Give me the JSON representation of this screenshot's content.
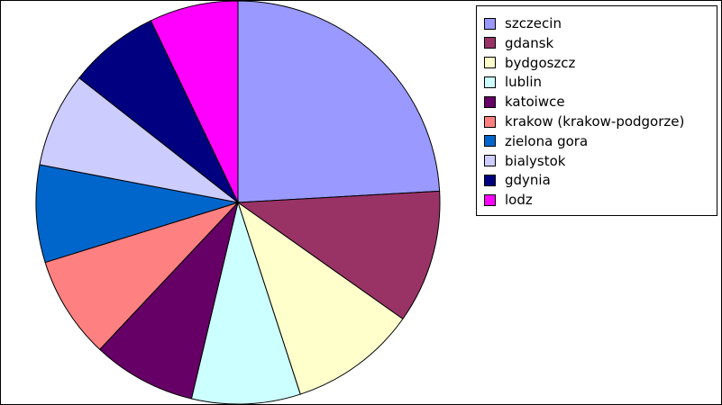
{
  "chart_data": {
    "type": "pie",
    "title": "",
    "legend_position": "top-right",
    "start_angle": "12 o'clock",
    "direction": "clockwise",
    "slices": [
      {
        "label": "szczecin",
        "value": 24.1,
        "color": "#9999ff"
      },
      {
        "label": "gdansk",
        "value": 10.7,
        "color": "#993366"
      },
      {
        "label": "bydgoszcz",
        "value": 10.2,
        "color": "#ffffcc"
      },
      {
        "label": "lublin",
        "value": 8.7,
        "color": "#ccffff"
      },
      {
        "label": "katoiwce",
        "value": 8.3,
        "color": "#660066"
      },
      {
        "label": "krakow (krakow-podgorze)",
        "value": 8.2,
        "color": "#ff8080"
      },
      {
        "label": "zielona gora",
        "value": 7.8,
        "color": "#0066cc"
      },
      {
        "label": "bialystok",
        "value": 7.6,
        "color": "#ccccff"
      },
      {
        "label": "gdynia",
        "value": 7.3,
        "color": "#000080"
      },
      {
        "label": "lodz",
        "value": 7.1,
        "color": "#ff00ff"
      }
    ]
  }
}
